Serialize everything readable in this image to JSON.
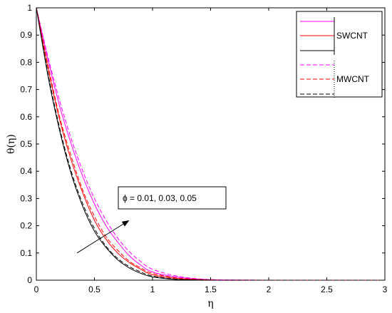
{
  "chart_data": {
    "type": "line",
    "title": "",
    "xlabel": "η",
    "ylabel": "θ(η)",
    "xlim": [
      0,
      3
    ],
    "ylim": [
      0,
      1
    ],
    "x_ticks": [
      "0",
      "0.5",
      "1",
      "1.5",
      "2",
      "2.5",
      "3"
    ],
    "y_ticks": [
      "0",
      "0.1",
      "0.2",
      "0.3",
      "0.4",
      "0.5",
      "0.6",
      "0.7",
      "0.8",
      "0.9",
      "1"
    ],
    "grid": false,
    "legend": {
      "placement": "top-right",
      "groups": [
        {
          "label": "SWCNT",
          "style": "solid",
          "colors": [
            "#ff00ff",
            "#ff0000",
            "#000000"
          ]
        },
        {
          "label": "MWCNT",
          "style": "dashed",
          "colors": [
            "#ff00ff",
            "#ff0000",
            "#000000"
          ]
        }
      ]
    },
    "annotation": {
      "text": "ϕ = 0.01, 0.03, 0.05",
      "arrow_from": [
        0.35,
        0.1
      ],
      "arrow_to": [
        0.8,
        0.22
      ]
    },
    "x": [
      0,
      0.1,
      0.2,
      0.3,
      0.4,
      0.5,
      0.6,
      0.7,
      0.8,
      0.9,
      1.0,
      1.2,
      1.4,
      1.6,
      2.0,
      2.5,
      3.0
    ],
    "series": [
      {
        "group": "SWCNT",
        "style": "solid",
        "color": "#ff00ff",
        "values": [
          1.0,
          0.81,
          0.64,
          0.5,
          0.38,
          0.28,
          0.2,
          0.14,
          0.09,
          0.055,
          0.03,
          0.012,
          0.004,
          0.001,
          0.0,
          0.0,
          0.0
        ]
      },
      {
        "group": "SWCNT",
        "style": "solid",
        "color": "#ff0000",
        "values": [
          1.0,
          0.78,
          0.59,
          0.44,
          0.32,
          0.22,
          0.15,
          0.1,
          0.065,
          0.04,
          0.02,
          0.007,
          0.002,
          0.0,
          0.0,
          0.0,
          0.0
        ]
      },
      {
        "group": "SWCNT",
        "style": "solid",
        "color": "#000000",
        "values": [
          1.0,
          0.75,
          0.55,
          0.39,
          0.27,
          0.18,
          0.12,
          0.075,
          0.045,
          0.025,
          0.012,
          0.003,
          0.001,
          0.0,
          0.0,
          0.0,
          0.0
        ]
      },
      {
        "group": "MWCNT",
        "style": "dashed",
        "color": "#ff00ff",
        "values": [
          1.0,
          0.82,
          0.66,
          0.52,
          0.4,
          0.3,
          0.22,
          0.155,
          0.105,
          0.068,
          0.04,
          0.016,
          0.005,
          0.001,
          0.0,
          0.0,
          0.0
        ]
      },
      {
        "group": "MWCNT",
        "style": "dashed",
        "color": "#ff0000",
        "values": [
          1.0,
          0.79,
          0.6,
          0.455,
          0.33,
          0.235,
          0.16,
          0.11,
          0.07,
          0.045,
          0.025,
          0.009,
          0.003,
          0.0,
          0.0,
          0.0,
          0.0
        ]
      },
      {
        "group": "MWCNT",
        "style": "dashed",
        "color": "#000000",
        "values": [
          1.0,
          0.76,
          0.56,
          0.4,
          0.28,
          0.19,
          0.125,
          0.08,
          0.05,
          0.03,
          0.015,
          0.004,
          0.001,
          0.0,
          0.0,
          0.0,
          0.0
        ]
      }
    ]
  }
}
